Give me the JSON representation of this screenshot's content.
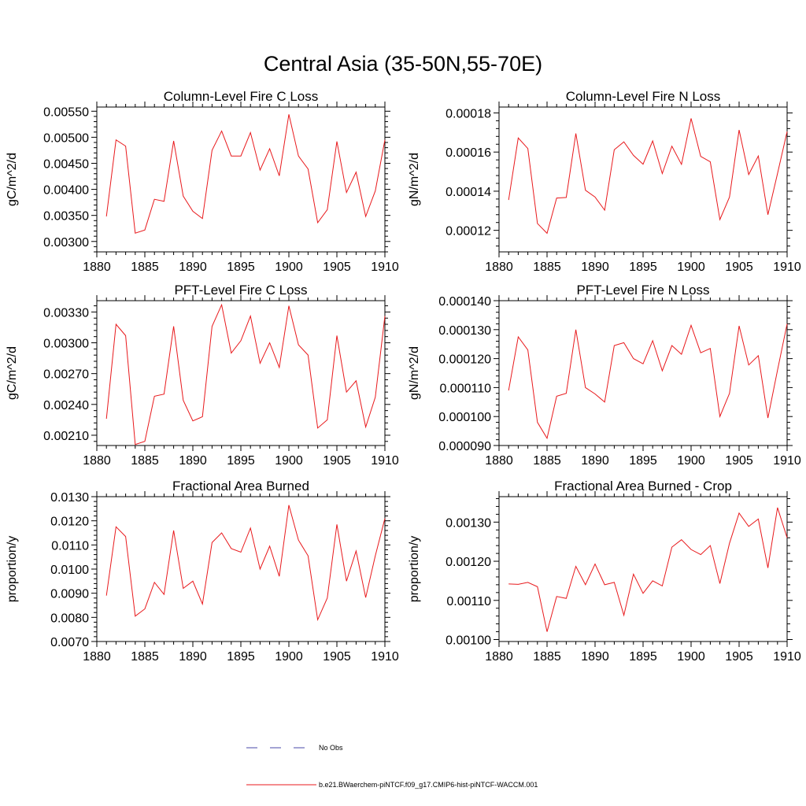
{
  "figure": {
    "title": "Central Asia (35-50N,55-70E)"
  },
  "legend": {
    "entries": [
      {
        "label": "No Obs",
        "color": "#4a4aa8",
        "style": "dashed"
      },
      {
        "label": "b.e21.BWaerchem-piNTCF.f09_g17.CMIP6-hist-piNTCF-WACCM.001",
        "color": "#e8191c",
        "style": "solid"
      }
    ]
  },
  "chart_data": [
    {
      "type": "line",
      "title": "Column-Level Fire C Loss",
      "ylabel": "gC/m^2/d",
      "xlim": [
        1880,
        1910
      ],
      "ylim": [
        0.0028,
        0.00558
      ],
      "xticks": [
        1880,
        1885,
        1890,
        1895,
        1900,
        1905,
        1910
      ],
      "xtick_labels": [
        "1880",
        "1885",
        "1890",
        "1895",
        "1900",
        "1905",
        "1910"
      ],
      "yticks": [
        0.003,
        0.0035,
        0.004,
        0.0045,
        0.005,
        0.0055
      ],
      "ytick_labels": [
        "0.00300",
        "0.00350",
        "0.00400",
        "0.00450",
        "0.00500",
        "0.00550"
      ],
      "series": [
        {
          "color": "#e8191c",
          "x": [
            1881,
            1882,
            1883,
            1884,
            1885,
            1886,
            1887,
            1888,
            1889,
            1890,
            1891,
            1892,
            1893,
            1894,
            1895,
            1896,
            1897,
            1898,
            1899,
            1900,
            1901,
            1902,
            1903,
            1904,
            1905,
            1906,
            1907,
            1908,
            1909,
            1910
          ],
          "y": [
            0.00348,
            0.00495,
            0.00483,
            0.00316,
            0.00322,
            0.00381,
            0.00377,
            0.00493,
            0.00387,
            0.00358,
            0.00344,
            0.00475,
            0.00512,
            0.00464,
            0.00464,
            0.00509,
            0.00437,
            0.00478,
            0.00426,
            0.00544,
            0.00464,
            0.00439,
            0.00336,
            0.00361,
            0.00492,
            0.00394,
            0.00433,
            0.00348,
            0.00397,
            0.00495
          ]
        }
      ]
    },
    {
      "type": "line",
      "title": "Column-Level Fire N Loss",
      "ylabel": "gN/m^2/d",
      "xlim": [
        1880,
        1910
      ],
      "ylim": [
        0.000109,
        0.000183
      ],
      "xticks": [
        1880,
        1885,
        1890,
        1895,
        1900,
        1905,
        1910
      ],
      "xtick_labels": [
        "1880",
        "1885",
        "1890",
        "1895",
        "1900",
        "1905",
        "1910"
      ],
      "yticks": [
        0.00012,
        0.00014,
        0.00016,
        0.00018
      ],
      "ytick_labels": [
        "0.00012",
        "0.00014",
        "0.00016",
        "0.00018"
      ],
      "series": [
        {
          "color": "#e8191c",
          "x": [
            1881,
            1882,
            1883,
            1884,
            1885,
            1886,
            1887,
            1888,
            1889,
            1890,
            1891,
            1892,
            1893,
            1894,
            1895,
            1896,
            1897,
            1898,
            1899,
            1900,
            1901,
            1902,
            1903,
            1904,
            1905,
            1906,
            1907,
            1908,
            1909,
            1910
          ],
          "y": [
            0.0001355,
            0.0001672,
            0.0001618,
            0.0001235,
            0.0001185,
            0.0001365,
            0.0001368,
            0.0001695,
            0.0001405,
            0.000137,
            0.0001303,
            0.0001612,
            0.0001652,
            0.0001583,
            0.0001538,
            0.0001657,
            0.000149,
            0.000163,
            0.0001537,
            0.0001772,
            0.0001578,
            0.000155,
            0.0001255,
            0.000137,
            0.0001713,
            0.0001485,
            0.000158,
            0.000128,
            0.000149,
            0.0001705
          ]
        }
      ]
    },
    {
      "type": "line",
      "title": "PFT-Level Fire C Loss",
      "ylabel": "gC/m^2/d",
      "xlim": [
        1880,
        1910
      ],
      "ylim": [
        0.002,
        0.00341
      ],
      "xticks": [
        1880,
        1885,
        1890,
        1895,
        1900,
        1905,
        1910
      ],
      "xtick_labels": [
        "1880",
        "1885",
        "1890",
        "1895",
        "1900",
        "1905",
        "1910"
      ],
      "yticks": [
        0.0021,
        0.0024,
        0.0027,
        0.003,
        0.0033
      ],
      "ytick_labels": [
        "0.00210",
        "0.00240",
        "0.00270",
        "0.00300",
        "0.00330"
      ],
      "series": [
        {
          "color": "#e8191c",
          "x": [
            1881,
            1882,
            1883,
            1884,
            1885,
            1886,
            1887,
            1888,
            1889,
            1890,
            1891,
            1892,
            1893,
            1894,
            1895,
            1896,
            1897,
            1898,
            1899,
            1900,
            1901,
            1902,
            1903,
            1904,
            1905,
            1906,
            1907,
            1908,
            1909,
            1910
          ],
          "y": [
            0.00226,
            0.00318,
            0.00307,
            0.00201,
            0.00204,
            0.00248,
            0.0025,
            0.00316,
            0.00244,
            0.00224,
            0.00228,
            0.00316,
            0.00337,
            0.0029,
            0.00302,
            0.00326,
            0.0028,
            0.003,
            0.00276,
            0.00336,
            0.00298,
            0.00288,
            0.00217,
            0.00225,
            0.00307,
            0.00252,
            0.00263,
            0.00218,
            0.00247,
            0.00326
          ]
        }
      ]
    },
    {
      "type": "line",
      "title": "PFT-Level Fire N Loss",
      "ylabel": "gN/m^2/d",
      "xlim": [
        1880,
        1910
      ],
      "ylim": [
        9e-05,
        0.00014
      ],
      "xticks": [
        1880,
        1885,
        1890,
        1895,
        1900,
        1905,
        1910
      ],
      "xtick_labels": [
        "1880",
        "1885",
        "1890",
        "1895",
        "1900",
        "1905",
        "1910"
      ],
      "yticks": [
        9e-05,
        0.0001,
        0.00011,
        0.00012,
        0.00013,
        0.00014
      ],
      "ytick_labels": [
        "0.000090",
        "0.000100",
        "0.000110",
        "0.000120",
        "0.000130",
        "0.000140"
      ],
      "series": [
        {
          "color": "#e8191c",
          "x": [
            1881,
            1882,
            1883,
            1884,
            1885,
            1886,
            1887,
            1888,
            1889,
            1890,
            1891,
            1892,
            1893,
            1894,
            1895,
            1896,
            1897,
            1898,
            1899,
            1900,
            1901,
            1902,
            1903,
            1904,
            1905,
            1906,
            1907,
            1908,
            1909,
            1910
          ],
          "y": [
            0.000109,
            0.0001275,
            0.000123,
            9.8e-05,
            9.25e-05,
            0.000107,
            0.000108,
            0.00013,
            0.00011,
            0.0001078,
            0.000105,
            0.0001245,
            0.0001255,
            0.00012,
            0.0001182,
            0.0001262,
            0.0001158,
            0.0001245,
            0.0001215,
            0.0001315,
            0.000122,
            0.0001235,
            0.0001,
            0.000108,
            0.0001313,
            0.0001178,
            0.000121,
            9.95e-05,
            0.000116,
            0.000132
          ]
        }
      ]
    },
    {
      "type": "line",
      "title": "Fractional Area Burned",
      "ylabel": "proportion/y",
      "xlim": [
        1880,
        1910
      ],
      "ylim": [
        0.007,
        0.013
      ],
      "xticks": [
        1880,
        1885,
        1890,
        1895,
        1900,
        1905,
        1910
      ],
      "xtick_labels": [
        "1880",
        "1885",
        "1890",
        "1895",
        "1900",
        "1905",
        "1910"
      ],
      "yticks": [
        0.007,
        0.008,
        0.009,
        0.01,
        0.011,
        0.012,
        0.013
      ],
      "ytick_labels": [
        "0.0070",
        "0.0080",
        "0.0090",
        "0.0100",
        "0.0110",
        "0.0120",
        "0.0130"
      ],
      "series": [
        {
          "color": "#e8191c",
          "x": [
            1881,
            1882,
            1883,
            1884,
            1885,
            1886,
            1887,
            1888,
            1889,
            1890,
            1891,
            1892,
            1893,
            1894,
            1895,
            1896,
            1897,
            1898,
            1899,
            1900,
            1901,
            1902,
            1903,
            1904,
            1905,
            1906,
            1907,
            1908,
            1909,
            1910
          ],
          "y": [
            0.0089,
            0.01175,
            0.01135,
            0.00805,
            0.00835,
            0.00945,
            0.00895,
            0.0116,
            0.0092,
            0.0095,
            0.00855,
            0.0111,
            0.0115,
            0.01085,
            0.0107,
            0.0117,
            0.01,
            0.01095,
            0.0097,
            0.01265,
            0.0112,
            0.01055,
            0.0079,
            0.0088,
            0.01185,
            0.0095,
            0.01075,
            0.00882,
            0.01055,
            0.0121
          ]
        }
      ]
    },
    {
      "type": "line",
      "title": "Fractional Area Burned - Crop",
      "ylabel": "proportion/y",
      "xlim": [
        1880,
        1910
      ],
      "ylim": [
        0.000995,
        0.001365
      ],
      "xticks": [
        1880,
        1885,
        1890,
        1895,
        1900,
        1905,
        1910
      ],
      "xtick_labels": [
        "1880",
        "1885",
        "1890",
        "1895",
        "1900",
        "1905",
        "1910"
      ],
      "yticks": [
        0.001,
        0.0011,
        0.0012,
        0.0013
      ],
      "ytick_labels": [
        "0.00100",
        "0.00110",
        "0.00120",
        "0.00130"
      ],
      "series": [
        {
          "color": "#e8191c",
          "x": [
            1881,
            1882,
            1883,
            1884,
            1885,
            1886,
            1887,
            1888,
            1889,
            1890,
            1891,
            1892,
            1893,
            1894,
            1895,
            1896,
            1897,
            1898,
            1899,
            1900,
            1901,
            1902,
            1903,
            1904,
            1905,
            1906,
            1907,
            1908,
            1909,
            1910
          ],
          "y": [
            0.001142,
            0.001141,
            0.001146,
            0.001135,
            0.00102,
            0.00111,
            0.001105,
            0.001187,
            0.00114,
            0.001193,
            0.00114,
            0.001146,
            0.001062,
            0.001167,
            0.001118,
            0.00115,
            0.001137,
            0.001236,
            0.001255,
            0.00123,
            0.001217,
            0.00124,
            0.001143,
            0.001246,
            0.001323,
            0.001289,
            0.001308,
            0.001183,
            0.001337,
            0.00126
          ]
        }
      ]
    }
  ]
}
